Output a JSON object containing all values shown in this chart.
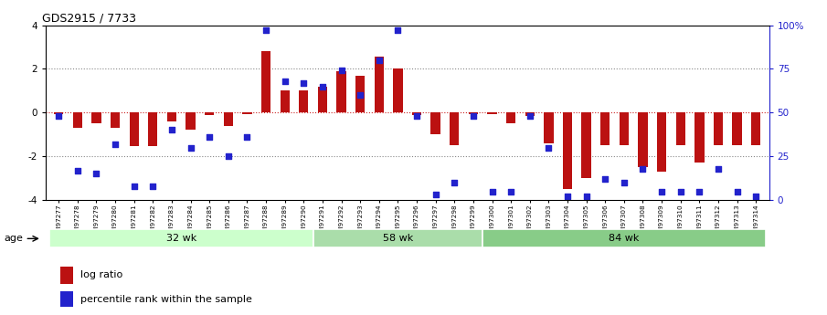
{
  "title": "GDS2915 / 7733",
  "samples": [
    "GSM97277",
    "GSM97278",
    "GSM97279",
    "GSM97280",
    "GSM97281",
    "GSM97282",
    "GSM97283",
    "GSM97284",
    "GSM97285",
    "GSM97286",
    "GSM97287",
    "GSM97288",
    "GSM97289",
    "GSM97290",
    "GSM97291",
    "GSM97292",
    "GSM97293",
    "GSM97294",
    "GSM97295",
    "GSM97296",
    "GSM97297",
    "GSM97298",
    "GSM97299",
    "GSM97300",
    "GSM97301",
    "GSM97302",
    "GSM97303",
    "GSM97304",
    "GSM97305",
    "GSM97306",
    "GSM97307",
    "GSM97308",
    "GSM97309",
    "GSM97310",
    "GSM97311",
    "GSM97312",
    "GSM97313",
    "GSM97314"
  ],
  "log_ratio": [
    -0.05,
    -0.7,
    -0.5,
    -0.7,
    -1.55,
    -1.55,
    -0.4,
    -0.8,
    -0.1,
    -0.6,
    -0.05,
    2.8,
    1.0,
    1.0,
    1.2,
    1.9,
    1.7,
    2.55,
    2.0,
    -0.1,
    -1.0,
    -1.5,
    -0.05,
    -0.05,
    -0.5,
    -0.15,
    -1.4,
    -3.5,
    -3.0,
    -1.5,
    -1.5,
    -2.5,
    -2.7,
    -1.5,
    -2.3,
    -1.5,
    -1.5,
    -1.5
  ],
  "percentile": [
    48,
    17,
    15,
    32,
    8,
    8,
    40,
    30,
    36,
    25,
    36,
    97,
    68,
    67,
    65,
    74,
    60,
    80,
    97,
    48,
    3,
    10,
    48,
    5,
    5,
    48,
    30,
    2,
    2,
    12,
    10,
    18,
    5,
    5,
    5,
    18,
    5,
    2
  ],
  "groups": [
    {
      "label": "32 wk",
      "start": 0,
      "end": 14
    },
    {
      "label": "58 wk",
      "start": 14,
      "end": 23
    },
    {
      "label": "84 wk",
      "start": 23,
      "end": 38
    }
  ],
  "ylim": [
    -4,
    4
  ],
  "yticks_left": [
    -4,
    -2,
    0,
    2,
    4
  ],
  "yticks_right_vals": [
    0,
    25,
    50,
    75,
    100
  ],
  "yticks_right_labels": [
    "0",
    "25",
    "50",
    "75",
    "100%"
  ],
  "bar_color": "#bb1111",
  "dot_color": "#2222cc",
  "dotline_color": "#888888",
  "zero_line_color": "#cc2222",
  "bg_color": "#ffffff",
  "legend_bar_label": "log ratio",
  "legend_dot_label": "percentile rank within the sample",
  "age_label": "age",
  "group_colors": [
    "#ccffcc",
    "#aaddaa",
    "#88cc88"
  ]
}
